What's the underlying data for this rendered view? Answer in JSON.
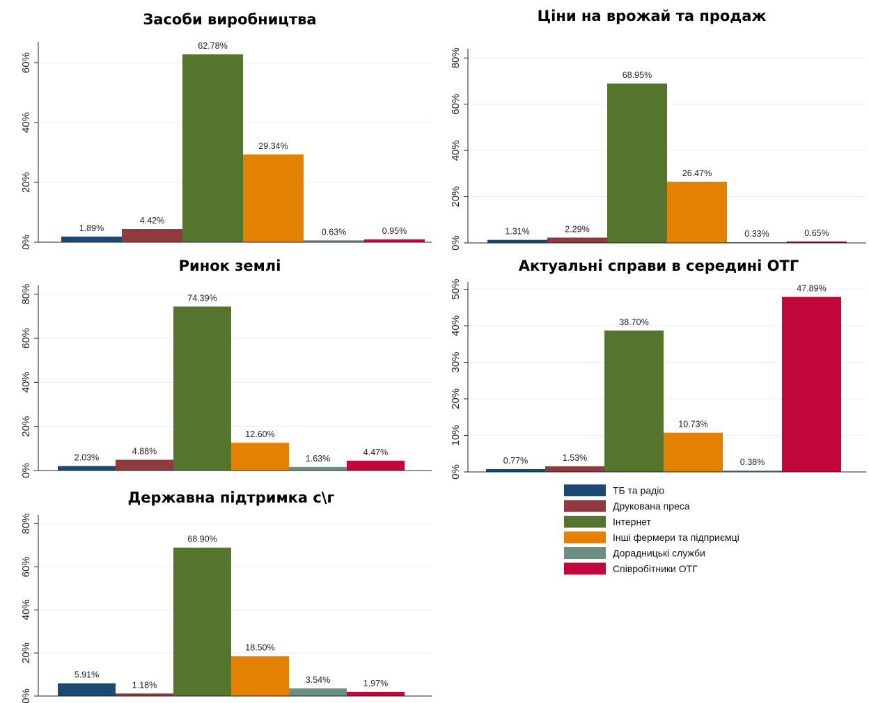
{
  "legend": {
    "items": [
      {
        "label": "ТБ та радіо",
        "color": "#1a4a72"
      },
      {
        "label": "Друкована преса",
        "color": "#8e3a40"
      },
      {
        "label": "Інтернет",
        "color": "#55742e"
      },
      {
        "label": "Інші фермери та підприємці",
        "color": "#e38100"
      },
      {
        "label": "Дорадницькі служби",
        "color": "#6b8f83"
      },
      {
        "label": "Співробітники ОТГ",
        "color": "#c1063b"
      }
    ]
  },
  "chart_data": [
    {
      "type": "bar",
      "title": "Засоби виробництва",
      "categories": [
        "ТБ та радіо",
        "Друкована преса",
        "Інтернет",
        "Інші фермери та підприємці",
        "Дорадницькі служби",
        "Співробітники ОТГ"
      ],
      "values": [
        1.89,
        4.42,
        62.78,
        29.34,
        0.63,
        0.95
      ],
      "data_labels": [
        "1.89%",
        "4.42%",
        "62.78%",
        "29.34%",
        "0.63%",
        "0.95%"
      ],
      "yticks": [
        "0%",
        "20%",
        "40%",
        "60%"
      ],
      "ylim": [
        0,
        67
      ],
      "grid": true
    },
    {
      "type": "bar",
      "title": "Ціни на врожай та продаж",
      "categories": [
        "ТБ та радіо",
        "Друкована преса",
        "Інтернет",
        "Інші фермери та підприємці",
        "Дорадницькі служби",
        "Співробітники ОТГ"
      ],
      "values": [
        1.31,
        2.29,
        68.95,
        26.47,
        0.33,
        0.65
      ],
      "data_labels": [
        "1.31%",
        "2.29%",
        "68.95%",
        "26.47%",
        "0.33%",
        "0.65%"
      ],
      "yticks": [
        "0%",
        "20%",
        "40%",
        "60%",
        "80%"
      ],
      "ylim": [
        0,
        84
      ],
      "grid": true
    },
    {
      "type": "bar",
      "title": "Ринок землі",
      "categories": [
        "ТБ та радіо",
        "Друкована преса",
        "Інтернет",
        "Інші фермери та підприємці",
        "Дорадницькі служби",
        "Співробітники ОТГ"
      ],
      "values": [
        2.03,
        4.88,
        74.39,
        12.6,
        1.63,
        4.47
      ],
      "data_labels": [
        "2.03%",
        "4.88%",
        "74.39%",
        "12.60%",
        "1.63%",
        "4.47%"
      ],
      "yticks": [
        "0%",
        "20%",
        "40%",
        "60%",
        "80%"
      ],
      "ylim": [
        0,
        84
      ],
      "grid": true
    },
    {
      "type": "bar",
      "title": "Актуальні справи в середині ОТГ",
      "categories": [
        "ТБ та радіо",
        "Друкована преса",
        "Інтернет",
        "Інші фермери та підприємці",
        "Дорадницькі служби",
        "Співробітники ОТГ"
      ],
      "values": [
        0.77,
        1.53,
        38.7,
        10.73,
        0.38,
        47.89
      ],
      "data_labels": [
        "0.77%",
        "1.53%",
        "38.70%",
        "10.73%",
        "0.38%",
        "47.89%"
      ],
      "yticks": [
        "0%",
        "10%",
        "20%",
        "30%",
        "40%",
        "50%"
      ],
      "ylim": [
        0,
        52
      ],
      "grid": true
    },
    {
      "type": "bar",
      "title": "Державна підтримка с\\г",
      "categories": [
        "ТБ та радіо",
        "Друкована преса",
        "Інтернет",
        "Інші фермери та підприємці",
        "Дорадницькі служби",
        "Співробітники ОТГ"
      ],
      "values": [
        5.91,
        1.18,
        68.9,
        18.5,
        3.54,
        1.97
      ],
      "data_labels": [
        "5.91%",
        "1.18%",
        "68.90%",
        "18.50%",
        "3.54%",
        "1.97%"
      ],
      "yticks": [
        "0%",
        "20%",
        "40%",
        "60%",
        "80%"
      ],
      "ylim": [
        0,
        84
      ],
      "grid": true
    }
  ]
}
